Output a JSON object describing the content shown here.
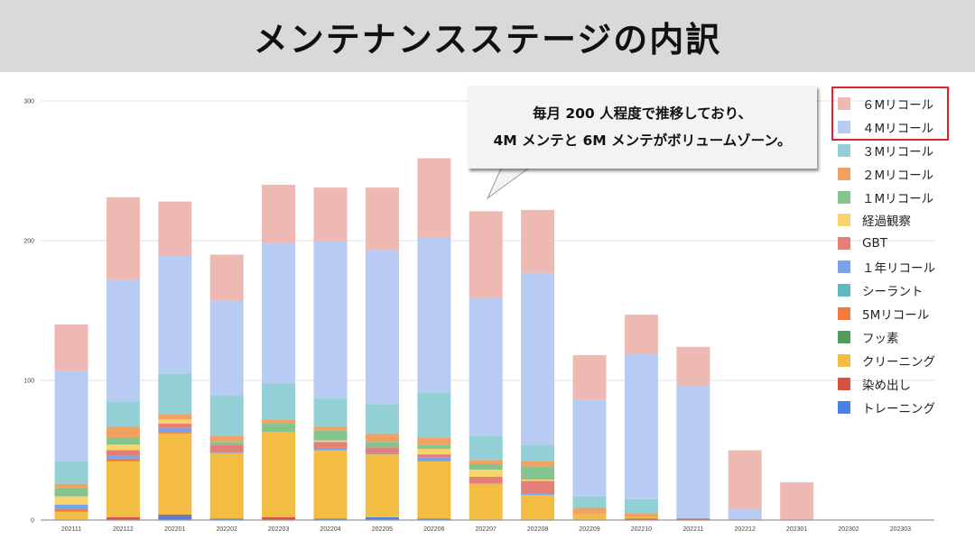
{
  "title": "メンテナンスステージの内訳",
  "callout": {
    "line1": "毎月 200 人程度で推移しており、",
    "line2": "4M メンテと 6M メンテがボリュームゾーン。"
  },
  "highlight_color": "#d9262c",
  "chart_data": {
    "type": "bar",
    "stacked": true,
    "title": "",
    "xlabel": "",
    "ylabel": "",
    "ylim": [
      0,
      300
    ],
    "yticks": [
      "0",
      "100",
      "200",
      "300"
    ],
    "grid": true,
    "legend_position": "right",
    "categories": [
      "202111",
      "202112",
      "202201",
      "202202",
      "202203",
      "202204",
      "202205",
      "202206",
      "202207",
      "202208",
      "202209",
      "202210",
      "202211",
      "202212",
      "202301",
      "202302",
      "202303"
    ],
    "series": [
      {
        "name": "トレーニング",
        "color": "#4a80e6",
        "values": [
          0,
          0,
          3,
          1,
          0,
          1,
          2,
          1,
          0,
          0,
          0,
          0,
          0,
          0,
          0,
          0,
          0
        ]
      },
      {
        "name": "染め出し",
        "color": "#d9503f",
        "values": [
          0,
          2,
          1,
          0,
          2,
          0,
          0,
          0,
          0,
          0,
          0,
          1,
          1,
          0,
          0,
          0,
          0
        ]
      },
      {
        "name": "クリーニング",
        "color": "#f2bd42",
        "values": [
          6,
          40,
          58,
          47,
          61,
          49,
          45,
          41,
          26,
          18,
          4,
          1,
          0,
          0,
          0,
          0,
          0
        ]
      },
      {
        "name": "フッ素",
        "color": "#4e9e5a",
        "values": [
          0,
          0,
          0,
          0,
          0,
          0,
          0,
          0,
          0,
          0,
          0,
          0,
          0,
          0,
          0,
          0,
          0
        ]
      },
      {
        "name": "5Mリコール",
        "color": "#ef7c3a",
        "values": [
          2,
          2,
          1,
          0,
          0,
          0,
          0,
          0,
          0,
          0,
          0,
          0,
          0,
          0,
          0,
          0,
          0
        ]
      },
      {
        "name": "シーラント",
        "color": "#5fb8bd",
        "values": [
          0,
          0,
          0,
          0,
          0,
          0,
          0,
          0,
          0,
          0,
          0,
          0,
          0,
          0,
          0,
          0,
          0
        ]
      },
      {
        "name": "１年リコール",
        "color": "#7aa2ea",
        "values": [
          3,
          2,
          3,
          1,
          0,
          1,
          1,
          3,
          0,
          1,
          0,
          0,
          0,
          0,
          0,
          0,
          0
        ]
      },
      {
        "name": "GBT",
        "color": "#e47f77",
        "values": [
          0,
          4,
          3,
          5,
          0,
          5,
          4,
          2,
          5,
          9,
          0,
          0,
          0,
          0,
          0,
          0,
          0
        ]
      },
      {
        "name": "経過観察",
        "color": "#f8d56a",
        "values": [
          6,
          4,
          3,
          0,
          0,
          1,
          0,
          4,
          5,
          1,
          0,
          0,
          0,
          0,
          0,
          0,
          0
        ]
      },
      {
        "name": "１Mリコール",
        "color": "#85c38f",
        "values": [
          6,
          5,
          0,
          2,
          6,
          7,
          4,
          3,
          4,
          9,
          0,
          0,
          0,
          0,
          0,
          0,
          0
        ]
      },
      {
        "name": "２Mリコール",
        "color": "#f0a262",
        "values": [
          3,
          8,
          4,
          4,
          3,
          3,
          6,
          5,
          3,
          4,
          5,
          3,
          0,
          0,
          0,
          0,
          0
        ]
      },
      {
        "name": "３Mリコール",
        "color": "#93d0d5",
        "values": [
          16,
          18,
          29,
          29,
          26,
          20,
          21,
          32,
          17,
          12,
          8,
          10,
          0,
          0,
          0,
          0,
          0
        ]
      },
      {
        "name": "４Mリコール",
        "color": "#b7cbf3",
        "values": [
          65,
          87,
          84,
          68,
          100,
          113,
          110,
          111,
          99,
          123,
          69,
          104,
          95,
          8,
          0,
          0,
          0
        ]
      },
      {
        "name": "６Mリコール",
        "color": "#efb9b3",
        "values": [
          33,
          59,
          39,
          33,
          42,
          38,
          45,
          57,
          62,
          45,
          32,
          28,
          28,
          42,
          27,
          0,
          0
        ]
      }
    ]
  }
}
